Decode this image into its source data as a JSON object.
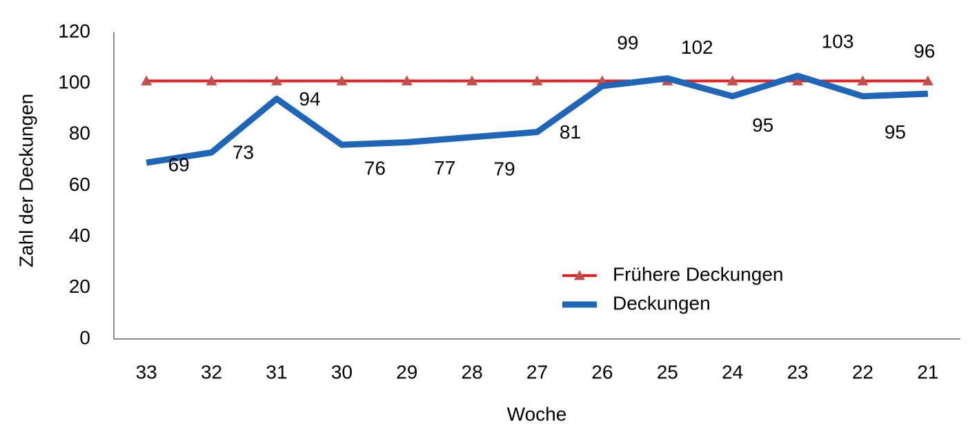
{
  "chart_data": {
    "type": "line",
    "x_label": "Woche",
    "y_label": "Zahl der Deckungen",
    "categories": [
      "33",
      "32",
      "31",
      "30",
      "29",
      "28",
      "27",
      "26",
      "25",
      "24",
      "23",
      "22",
      "21"
    ],
    "series": [
      {
        "name": "Frühere Deckungen",
        "color": "#e3211c",
        "marker_color": "#c0504d",
        "marker": "triangle",
        "values": [
          101,
          101,
          101,
          101,
          101,
          101,
          101,
          101,
          101,
          101,
          101,
          101,
          101
        ]
      },
      {
        "name": "Deckungen",
        "color": "#1f65b8",
        "data_labels": true,
        "values": [
          69,
          73,
          94,
          76,
          77,
          79,
          81,
          99,
          102,
          95,
          103,
          95,
          96
        ]
      }
    ],
    "ylim": [
      0,
      120
    ],
    "yticks": [
      0,
      20,
      40,
      60,
      80,
      100,
      120
    ],
    "grid": false
  }
}
